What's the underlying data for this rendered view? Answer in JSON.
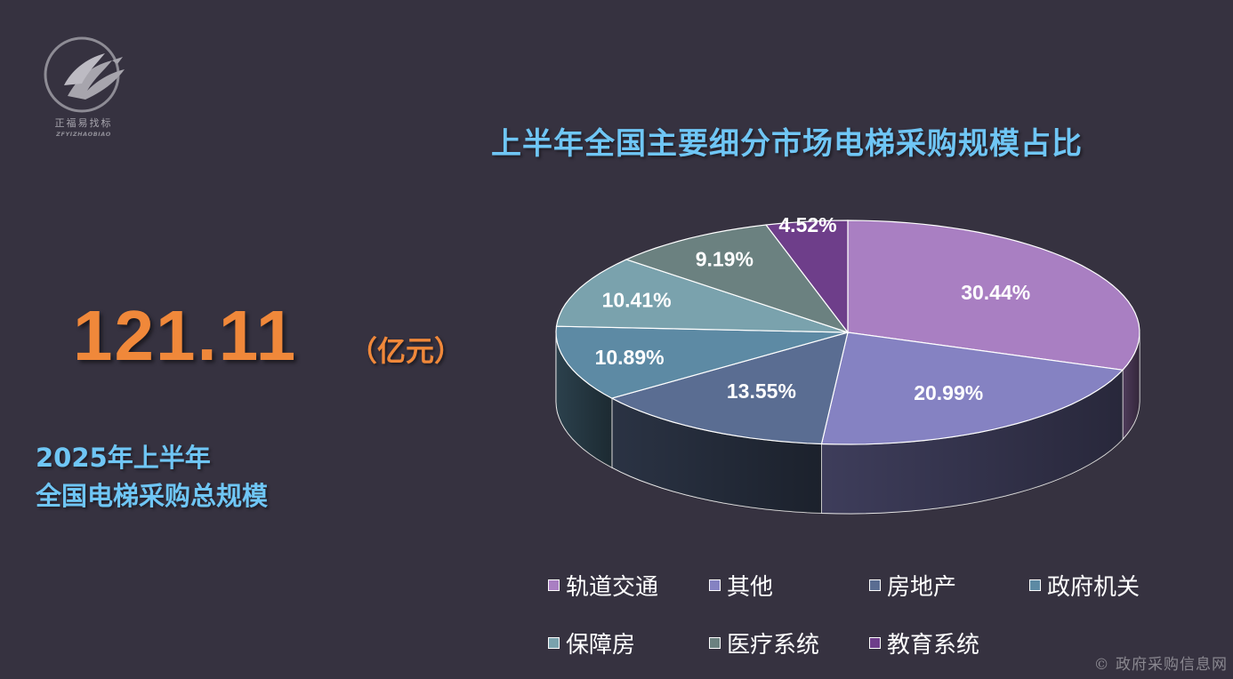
{
  "logo": {
    "brand_cn": "正福易找标",
    "brand_en": "ZFYIZHAOBIAO"
  },
  "headline": {
    "total_value": "121.11",
    "unit": "（亿元）",
    "caption_line1": "2025年上半年",
    "caption_line2": "全国电梯采购总规模"
  },
  "colors": {
    "background": "#363240",
    "title": "#6fc6f5",
    "total": "#f0883a"
  },
  "chart_data": {
    "type": "pie",
    "title": "上半年全国主要细分市场电梯采购规模占比",
    "style": "3d-exploded-ring",
    "legend_position": "bottom",
    "slices": [
      {
        "name": "轨道交通",
        "value": 30.44,
        "label": "30.44%",
        "color": "#a97fc2"
      },
      {
        "name": "其他",
        "value": 20.99,
        "label": "20.99%",
        "color": "#8582c2"
      },
      {
        "name": "房地产",
        "value": 13.55,
        "label": "13.55%",
        "color": "#5a6d92"
      },
      {
        "name": "政府机关",
        "value": 10.89,
        "label": "10.89%",
        "color": "#5d8aa4"
      },
      {
        "name": "保障房",
        "value": 10.41,
        "label": "10.41%",
        "color": "#7aa2ad"
      },
      {
        "name": "医疗系统",
        "value": 9.19,
        "label": "9.19%",
        "color": "#6b8180"
      },
      {
        "name": "教育系统",
        "value": 4.52,
        "label": "4.52%",
        "color": "#6e3e8a"
      }
    ]
  },
  "watermark": "政府采购信息网"
}
